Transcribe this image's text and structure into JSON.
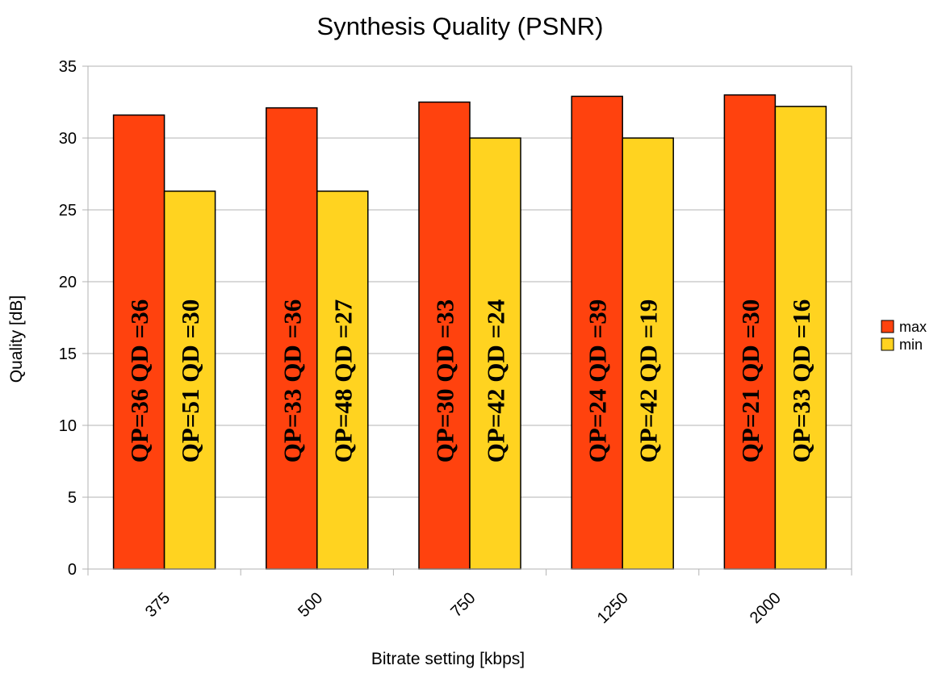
{
  "chart_data": {
    "type": "bar",
    "title": "Synthesis Quality (PSNR)",
    "xlabel": "Bitrate setting [kbps]",
    "ylabel": "Quality [dB]",
    "categories": [
      "375",
      "500",
      "750",
      "1250",
      "2000"
    ],
    "ylim": [
      0,
      35
    ],
    "yticks": [
      0,
      5,
      10,
      15,
      20,
      25,
      30,
      35
    ],
    "grid": true,
    "legend_position": "right",
    "series": [
      {
        "name": "max",
        "color": "#ff420e",
        "values": [
          31.6,
          32.1,
          32.5,
          32.9,
          33.0
        ],
        "labels": [
          "QP=36 QD =36",
          "QP=33 QD =36",
          "QP=30 QD =33",
          "QP=24 QD =39",
          "QP=21 QD =30"
        ]
      },
      {
        "name": "min",
        "color": "#ffd320",
        "values": [
          26.3,
          26.3,
          30.0,
          30.0,
          32.2
        ],
        "labels": [
          "QP=51 QD =30",
          "QP=48 QD =27",
          "QP=42 QD =24",
          "QP=42 QD =19",
          "QP=33 QD =16"
        ]
      }
    ]
  }
}
